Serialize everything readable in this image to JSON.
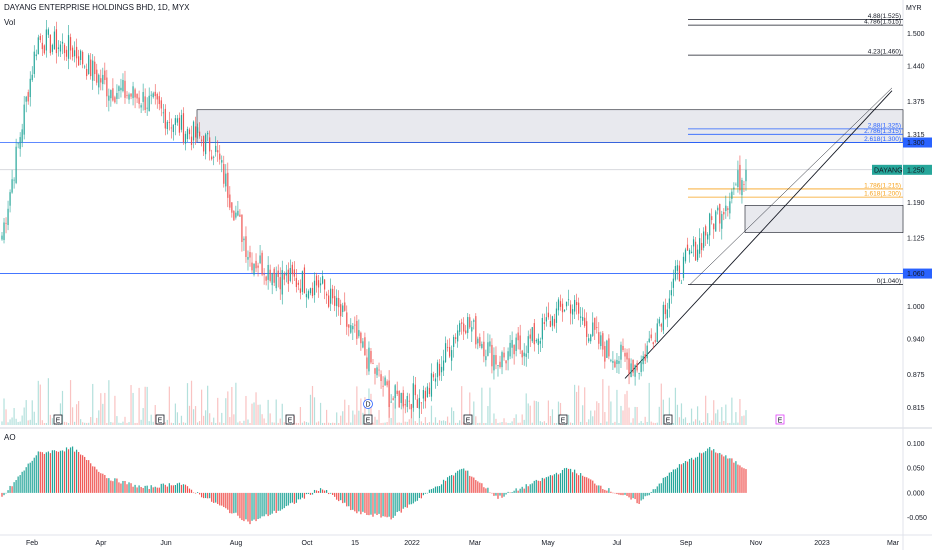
{
  "header": {
    "symbol_title": "DAYANG ENTERPRISE HOLDINGS BHD, 1D, MYX",
    "volume_label": "Vol",
    "oscillator_label": "AO",
    "currency": "MYR"
  },
  "colors": {
    "up": "#26a69a",
    "down": "#ef5350",
    "blue_level": "#2962ff",
    "fib_orange": "#f7a21b",
    "zone_fill": "#e8e9ee",
    "last_price_badge": "#26a69a"
  },
  "price_axis": {
    "ticks": [
      "1.500",
      "1.440",
      "1.375",
      "1.315",
      "1.250",
      "1.190",
      "1.125",
      "1.060",
      "1.000",
      "0.940",
      "0.875",
      "0.815"
    ],
    "range": [
      0.79,
      1.55
    ]
  },
  "ao_axis": {
    "ticks": [
      "0.100",
      "0.050",
      "0.000",
      "-0.050"
    ],
    "range": [
      -0.075,
      0.115
    ]
  },
  "time_axis": {
    "labels": [
      "Feb",
      "Apr",
      "Jun",
      "Aug",
      "Oct",
      "15",
      "2022",
      "Mar",
      "May",
      "Jul",
      "Sep",
      "Nov",
      "2023",
      "Mar"
    ]
  },
  "badges": {
    "level_1300": "1.300",
    "last_price_symbol": "DAYANG",
    "last_price": "1.250",
    "level_1060": "1.060"
  },
  "fib_levels": [
    {
      "label": "4.88(1.525)",
      "value": 1.525,
      "color": "#131722"
    },
    {
      "label": "4.786(1.515)",
      "value": 1.515,
      "color": "#131722"
    },
    {
      "label": "4.23(1.460)",
      "value": 1.46,
      "color": "#131722"
    },
    {
      "label": "2.88(1.325)",
      "value": 1.325,
      "color": "#2962ff"
    },
    {
      "label": "2.786(1.315)",
      "value": 1.315,
      "color": "#2962ff"
    },
    {
      "label": "2.618(1.300)",
      "value": 1.3,
      "color": "#2962ff"
    },
    {
      "label": "1.786(1.215)",
      "value": 1.215,
      "color": "#f7a21b"
    },
    {
      "label": "1.618(1.200)",
      "value": 1.2,
      "color": "#f7a21b"
    },
    {
      "label": "0(1.040)",
      "value": 1.04,
      "color": "#131722"
    }
  ],
  "event_markers": [
    "E",
    "E",
    "E",
    "E",
    "E",
    "E",
    "E",
    "E",
    "D",
    "E"
  ],
  "chart_data": {
    "type": "line",
    "description_series": "daily close",
    "x": [
      "2021-01",
      "2021-02",
      "2021-03",
      "2021-04",
      "2021-05",
      "2021-06",
      "2021-07",
      "2021-08",
      "2021-09",
      "2021-10",
      "2021-11",
      "2021-12",
      "2022-01",
      "2022-02",
      "2022-03",
      "2022-04",
      "2022-05",
      "2022-06",
      "2022-07",
      "2022-08",
      "2022-09",
      "2022-10"
    ],
    "series": [
      {
        "values": [
          1.13,
          1.49,
          1.47,
          1.4,
          1.38,
          1.33,
          1.29,
          1.09,
          1.05,
          1.04,
          0.94,
          0.83,
          0.84,
          0.98,
          0.9,
          0.94,
          1.01,
          0.92,
          0.89,
          1.05,
          1.15,
          1.25
        ]
      }
    ],
    "ao": [
      -0.01,
      0.08,
      0.09,
      0.03,
      0.01,
      0.02,
      -0.02,
      -0.06,
      -0.03,
      0.01,
      -0.04,
      -0.05,
      0.0,
      0.05,
      -0.01,
      0.02,
      0.05,
      0.01,
      -0.02,
      0.05,
      0.09,
      0.05
    ],
    "ylim": [
      0.79,
      1.55
    ],
    "levels": [
      1.3,
      1.06
    ],
    "last_price": 1.25
  }
}
